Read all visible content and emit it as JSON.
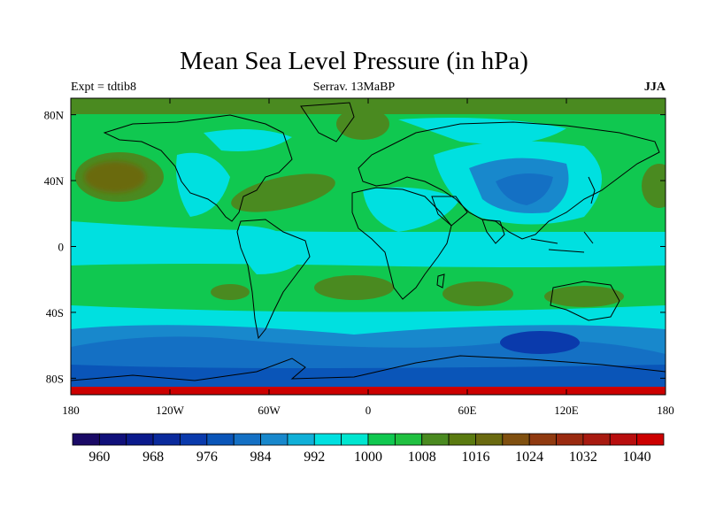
{
  "title": "Mean Sea Level Pressure (in hPa)",
  "subtitle_left": "Expt = tdtib8",
  "subtitle_center": "Serrav.  13MaBP",
  "subtitle_right": "JJA",
  "axes": {
    "lon_labels": [
      "180",
      "120W",
      "60W",
      "0",
      "60E",
      "120E",
      "180"
    ],
    "lon_values": [
      -180,
      -120,
      -60,
      0,
      60,
      120,
      180
    ],
    "lat_labels": [
      "80N",
      "40N",
      "0",
      "40S",
      "80S"
    ],
    "lat_values": [
      80,
      40,
      0,
      -40,
      -80
    ],
    "lon_range": [
      -180,
      180
    ],
    "lat_range": [
      -90,
      90
    ]
  },
  "colorbar": {
    "labels": [
      "960",
      "968",
      "976",
      "984",
      "992",
      "1000",
      "1008",
      "1016",
      "1024",
      "1032",
      "1040"
    ],
    "colors": [
      "#1a0a66",
      "#10107a",
      "#0b1a8c",
      "#0a2a9c",
      "#0a3aac",
      "#0a55b8",
      "#1470c4",
      "#1888cc",
      "#10b0d8",
      "#00e0e0",
      "#00e6d0",
      "#10c850",
      "#20c040",
      "#4a8a20",
      "#5a7a10",
      "#6a6a10",
      "#805010",
      "#903a10",
      "#9a2a10",
      "#a81a10",
      "#b80e0e",
      "#cc0000"
    ]
  },
  "map_colors": {
    "deep_low": "#0a3aac",
    "low": "#1470c4",
    "mid_low": "#1888cc",
    "cyan": "#00e0e0",
    "green": "#10c850",
    "olive": "#4a8a20",
    "brown": "#6a6a10",
    "red_edge": "#cc0000"
  }
}
